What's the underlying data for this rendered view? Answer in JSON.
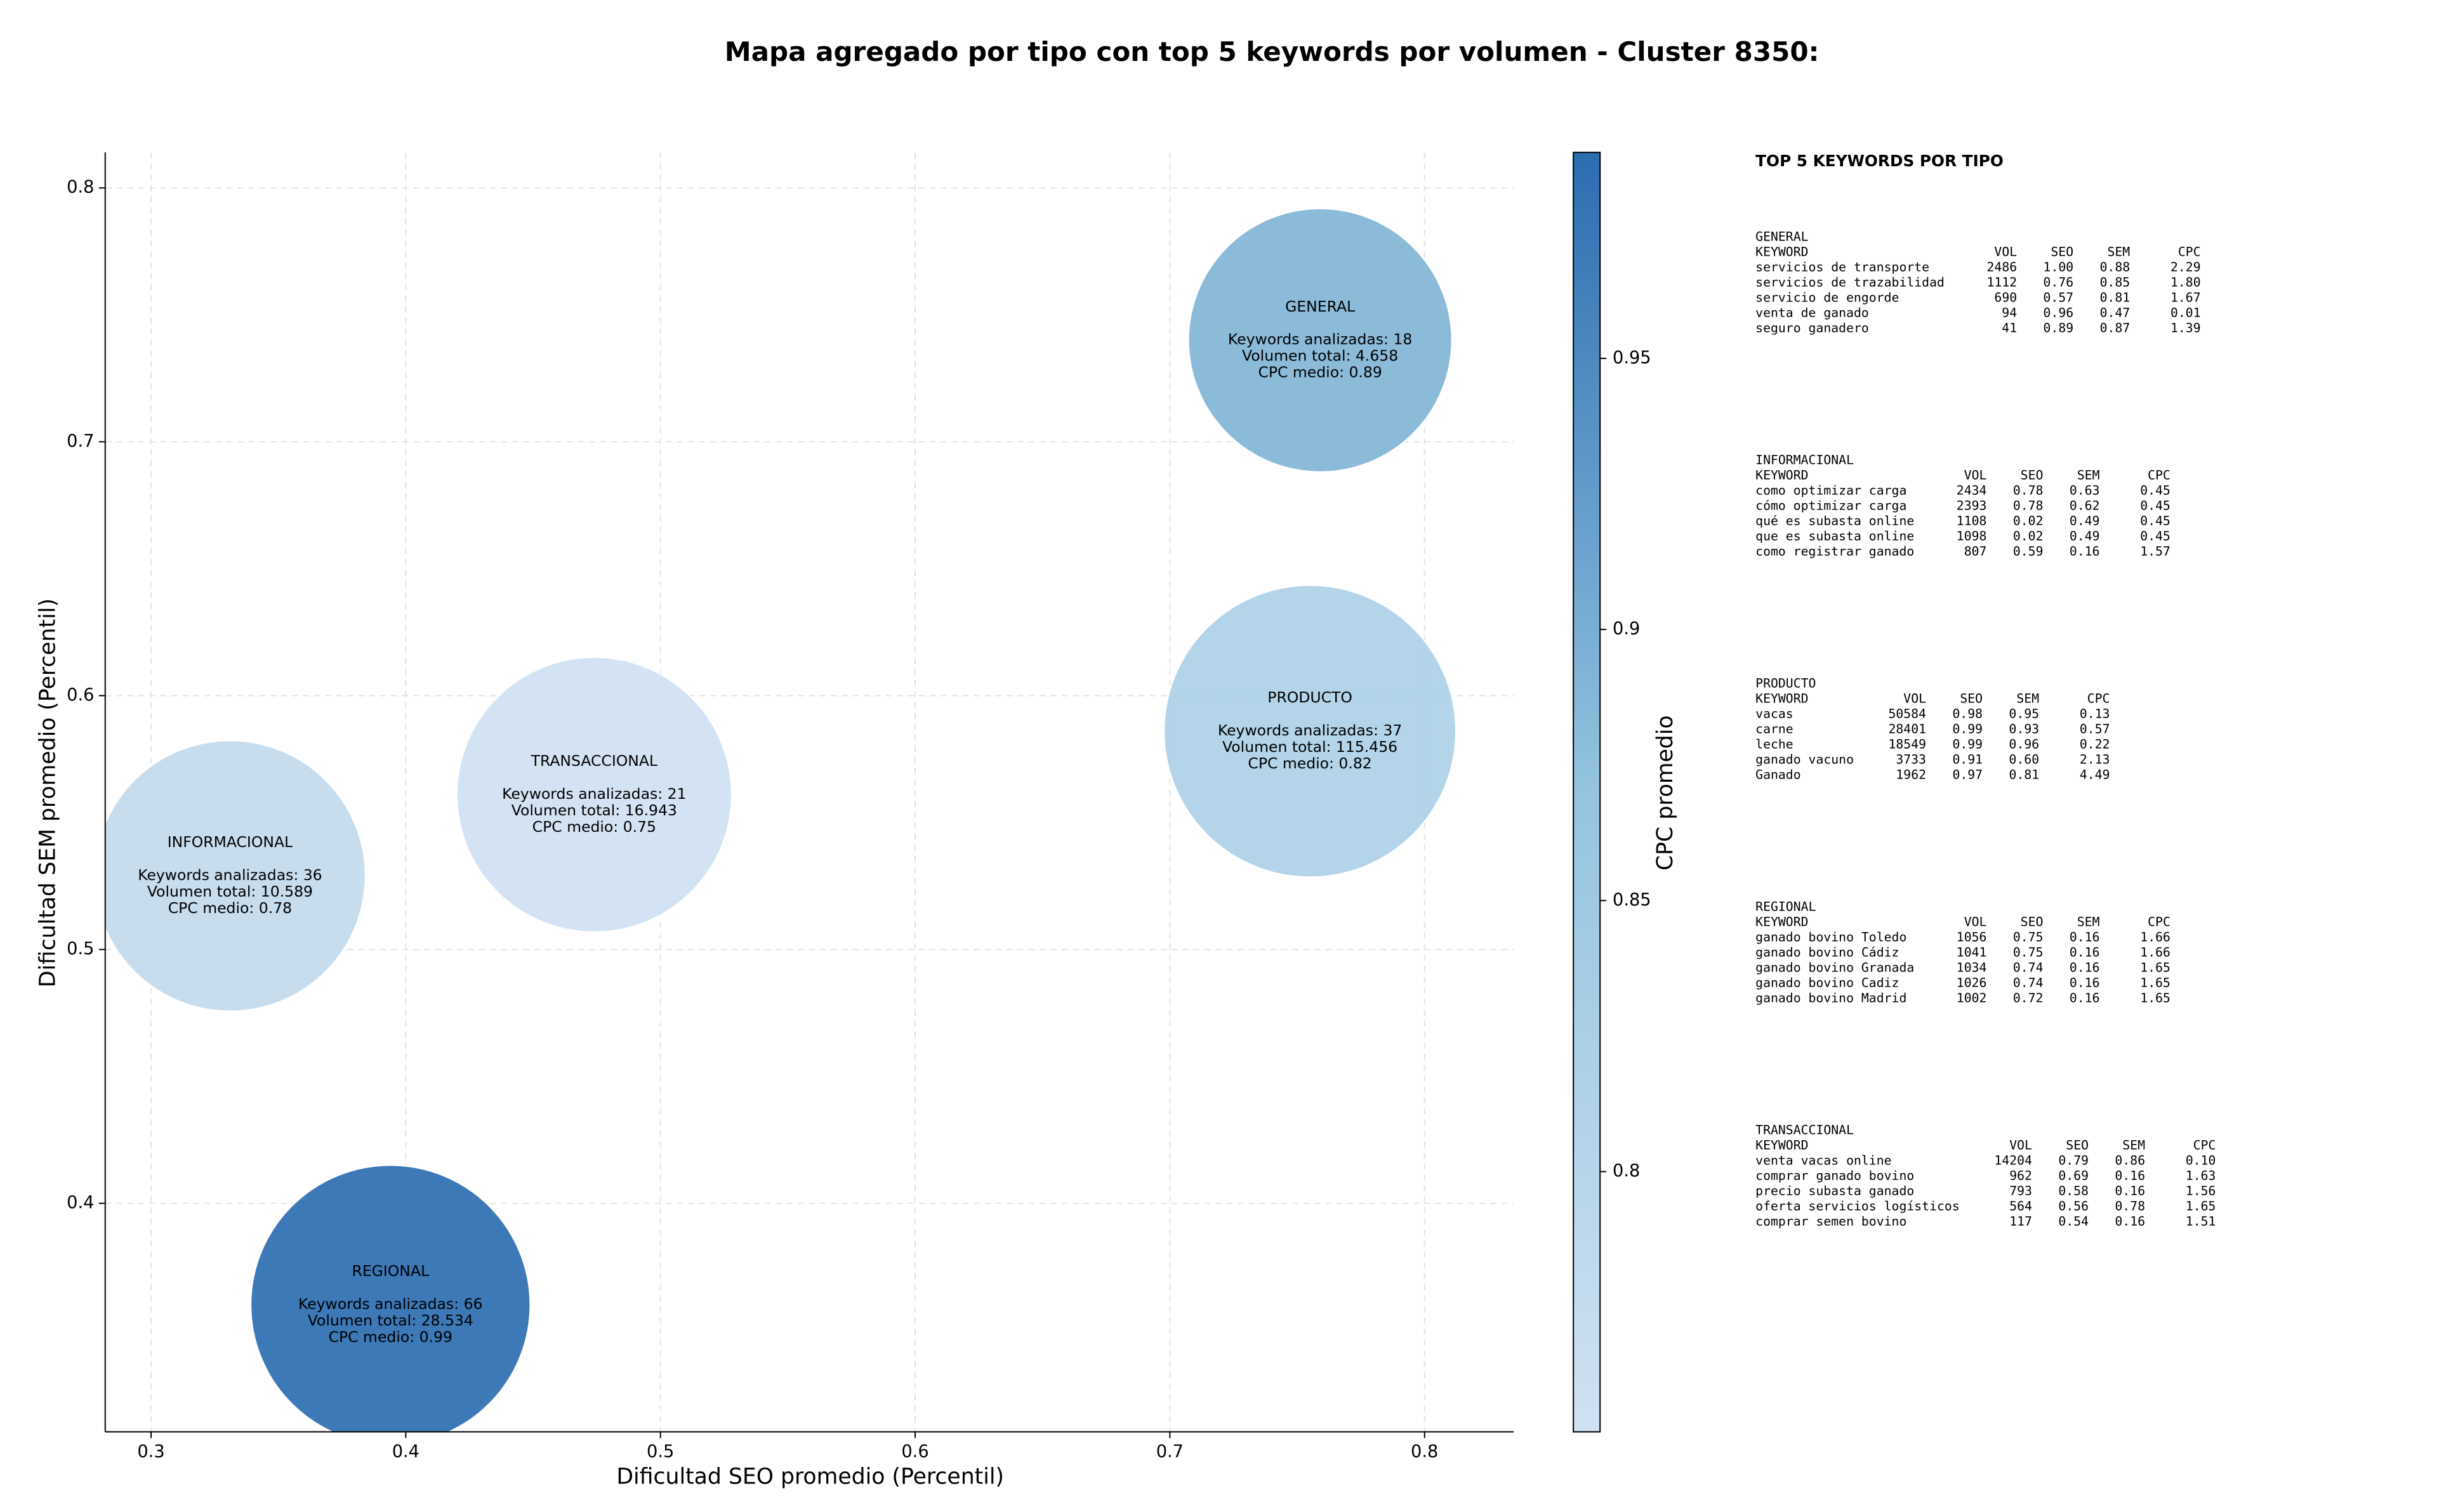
{
  "chart_data": {
    "type": "bubble",
    "title": "Mapa agregado por tipo con top 5 keywords por volumen - Cluster 8350:",
    "x_label": "Dificultad SEO promedio (Percentil)",
    "y_label": "Dificultad SEM promedio (Percentil)",
    "colorbar_label": "CPC promedio",
    "categories": [
      "GENERAL",
      "PRODUCTO",
      "TRANSACCIONAL",
      "INFORMACIONAL",
      "REGIONAL"
    ],
    "x": [
      0.759,
      0.755,
      0.474,
      0.331,
      0.394
    ],
    "y": [
      0.74,
      0.586,
      0.561,
      0.529,
      0.36
    ],
    "cpc": [
      0.89,
      0.82,
      0.75,
      0.78,
      0.99
    ],
    "volume": [
      4658,
      115456,
      16943,
      10589,
      28534
    ],
    "annotations": [
      [
        "Keywords analizadas: 18",
        "Volumen total: 4.658",
        "CPC medio: 0.89"
      ],
      [
        "Keywords analizadas: 37",
        "Volumen total: 115.456",
        "CPC medio: 0.82"
      ],
      [
        "Keywords analizadas: 21",
        "Volumen total: 16.943",
        "CPC medio: 0.75"
      ],
      [
        "Keywords analizadas: 36",
        "Volumen total: 10.589",
        "CPC medio: 0.78"
      ],
      [
        "Keywords analizadas: 66",
        "Volumen total: 28.534",
        "CPC medio: 0.99"
      ]
    ],
    "xlim": [
      0.282,
      0.835
    ],
    "ylim": [
      0.31,
      0.814
    ],
    "xticks": [
      0.3,
      0.4,
      0.5,
      0.6,
      0.7,
      0.8
    ],
    "yticks": [
      0.4,
      0.5,
      0.6,
      0.7,
      0.8
    ],
    "clim": [
      0.752,
      0.988
    ],
    "cticks": [
      0.8,
      0.85,
      0.9,
      0.95
    ],
    "colormap": [
      "#d0e1f2",
      "#94c4df",
      "#2c6db1"
    ],
    "grid": true,
    "side_panel": {
      "title": "TOP 5 KEYWORDS POR TIPO",
      "groups": [
        {
          "name": "GENERAL",
          "header": [
            "KEYWORD",
            "VOL",
            "SEO",
            "SEM",
            "CPC"
          ],
          "rows": [
            [
              "servicios de transporte",
              "2486",
              "1.00",
              "0.88",
              "2.29"
            ],
            [
              "servicios de trazabilidad",
              "1112",
              "0.76",
              "0.85",
              "1.80"
            ],
            [
              "servicio de engorde",
              "690",
              "0.57",
              "0.81",
              "1.67"
            ],
            [
              "venta de ganado",
              "94",
              "0.96",
              "0.47",
              "0.01"
            ],
            [
              "seguro ganadero",
              "41",
              "0.89",
              "0.87",
              "1.39"
            ]
          ]
        },
        {
          "name": "INFORMACIONAL",
          "header": [
            "KEYWORD",
            "VOL",
            "SEO",
            "SEM",
            "CPC"
          ],
          "rows": [
            [
              "como optimizar carga",
              "2434",
              "0.78",
              "0.63",
              "0.45"
            ],
            [
              "cómo optimizar carga",
              "2393",
              "0.78",
              "0.62",
              "0.45"
            ],
            [
              "qué es subasta online",
              "1108",
              "0.02",
              "0.49",
              "0.45"
            ],
            [
              "que es subasta online",
              "1098",
              "0.02",
              "0.49",
              "0.45"
            ],
            [
              "como registrar ganado",
              "807",
              "0.59",
              "0.16",
              "1.57"
            ]
          ]
        },
        {
          "name": "PRODUCTO",
          "header": [
            "KEYWORD",
            "VOL",
            "SEO",
            "SEM",
            "CPC"
          ],
          "rows": [
            [
              "vacas",
              "50584",
              "0.98",
              "0.95",
              "0.13"
            ],
            [
              "carne",
              "28401",
              "0.99",
              "0.93",
              "0.57"
            ],
            [
              "leche",
              "18549",
              "0.99",
              "0.96",
              "0.22"
            ],
            [
              "ganado vacuno",
              "3733",
              "0.91",
              "0.60",
              "2.13"
            ],
            [
              "Ganado",
              "1962",
              "0.97",
              "0.81",
              "4.49"
            ]
          ]
        },
        {
          "name": "REGIONAL",
          "header": [
            "KEYWORD",
            "VOL",
            "SEO",
            "SEM",
            "CPC"
          ],
          "rows": [
            [
              "ganado bovino Toledo",
              "1056",
              "0.75",
              "0.16",
              "1.66"
            ],
            [
              "ganado bovino Cádiz",
              "1041",
              "0.75",
              "0.16",
              "1.66"
            ],
            [
              "ganado bovino Granada",
              "1034",
              "0.74",
              "0.16",
              "1.65"
            ],
            [
              "ganado bovino Cadiz",
              "1026",
              "0.74",
              "0.16",
              "1.65"
            ],
            [
              "ganado bovino Madrid",
              "1002",
              "0.72",
              "0.16",
              "1.65"
            ]
          ]
        },
        {
          "name": "TRANSACCIONAL",
          "header": [
            "KEYWORD",
            "VOL",
            "SEO",
            "SEM",
            "CPC"
          ],
          "rows": [
            [
              "venta vacas online",
              "14204",
              "0.79",
              "0.86",
              "0.10"
            ],
            [
              "comprar ganado bovino",
              "962",
              "0.69",
              "0.16",
              "1.63"
            ],
            [
              "precio subasta ganado",
              "793",
              "0.58",
              "0.16",
              "1.56"
            ],
            [
              "oferta servicios logísticos",
              "564",
              "0.56",
              "0.78",
              "1.65"
            ],
            [
              "comprar semen bovino",
              "117",
              "0.54",
              "0.16",
              "1.51"
            ]
          ]
        }
      ]
    }
  }
}
